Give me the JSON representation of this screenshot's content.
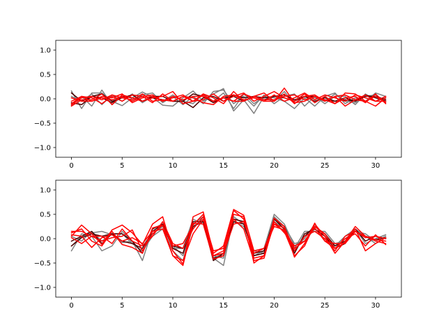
{
  "chart_data": [
    {
      "type": "line",
      "xlim": [
        -1.55,
        32.55
      ],
      "ylim": [
        -1.2,
        1.2
      ],
      "x_ticks": [
        0,
        5,
        10,
        15,
        20,
        25,
        30
      ],
      "x_tick_labels": [
        "0",
        "5",
        "10",
        "15",
        "20",
        "25",
        "30"
      ],
      "y_ticks": [
        -1.0,
        -0.5,
        0.0,
        0.5,
        1.0
      ],
      "y_tick_labels": [
        "−1.0",
        "−0.5",
        "0.0",
        "0.5",
        "1.0"
      ],
      "grid": false,
      "colors": {
        "gray": "#808080",
        "dark": "#4d0000",
        "red": "#ff0000"
      },
      "x": [
        0,
        1,
        2,
        3,
        4,
        5,
        6,
        7,
        8,
        9,
        10,
        11,
        12,
        13,
        14,
        15,
        16,
        17,
        18,
        19,
        20,
        21,
        22,
        23,
        24,
        25,
        26,
        27,
        28,
        29,
        30,
        31
      ],
      "series": [
        {
          "color": "gray",
          "values": [
            0.16,
            -0.2,
            0.12,
            0.12,
            -0.05,
            -0.14,
            0.02,
            0.14,
            0.03,
            -0.13,
            -0.15,
            0.02,
            0.16,
            -0.05,
            0.1,
            0.21,
            -0.25,
            -0.02,
            -0.3,
            0.05,
            0.02,
            -0.05,
            -0.2,
            0.02,
            -0.15,
            0.05,
            0.12,
            -0.1,
            0.02,
            -0.05,
            0.12,
            0.05
          ]
        },
        {
          "color": "gray",
          "values": [
            -0.14,
            0.05,
            -0.15,
            0.18,
            -0.12,
            0.05,
            -0.05,
            0.08,
            0.12,
            -0.08,
            0.05,
            -0.12,
            0.05,
            -0.1,
            0.15,
            0.18,
            -0.1,
            0.05,
            -0.15,
            0.08,
            -0.1,
            0.05,
            0.1,
            -0.15,
            0.05,
            -0.1,
            0.05,
            0.05,
            -0.12,
            0.1,
            -0.05,
            0.02
          ]
        },
        {
          "color": "gray",
          "values": [
            0.05,
            -0.05,
            0.1,
            -0.12,
            0.08,
            -0.05,
            0.1,
            -0.08,
            0.05,
            -0.05,
            0.08,
            -0.05,
            -0.1,
            0.1,
            -0.05,
            0.12,
            -0.2,
            0.1,
            -0.1,
            0.05,
            -0.05,
            0.15,
            -0.1,
            0.05,
            0.02,
            -0.05,
            0.1,
            -0.05,
            -0.08,
            0.05,
            0.08,
            -0.05
          ]
        },
        {
          "color": "dark",
          "values": [
            0.12,
            -0.05,
            0.05,
            0.1,
            -0.05,
            0.02,
            0.08,
            -0.05,
            0.05,
            0.05,
            -0.05,
            -0.05,
            0.1,
            0.05,
            -0.08,
            0.02,
            0.05,
            -0.05,
            0.05,
            0.02,
            0.05,
            0.02,
            -0.05,
            0.05,
            0.05,
            -0.02,
            -0.05,
            0.02,
            -0.05,
            0.05,
            0.05,
            -0.02
          ]
        },
        {
          "color": "dark",
          "values": [
            -0.08,
            -0.12,
            0.05,
            0.02,
            -0.08,
            0.05,
            0.02,
            -0.05,
            0.02,
            -0.02,
            -0.05,
            -0.05,
            -0.18,
            0.02,
            0.05,
            -0.05,
            0.08,
            0.02,
            0.05,
            -0.02,
            0.05,
            0.08,
            -0.02,
            0.05,
            -0.05,
            0.02,
            -0.05,
            -0.02,
            -0.05,
            0.08,
            0.02,
            -0.05
          ]
        },
        {
          "color": "red",
          "values": [
            -0.15,
            -0.02,
            -0.02,
            0.1,
            -0.12,
            0.08,
            0.02,
            -0.05,
            0.02,
            0.05,
            0.15,
            -0.1,
            -0.05,
            0.08,
            -0.05,
            0.02,
            -0.05,
            0.1,
            0.02,
            -0.05,
            -0.05,
            0.22,
            -0.08,
            -0.05,
            0.05,
            -0.02,
            -0.1,
            0.12,
            0.1,
            -0.05,
            -0.15,
            0.02
          ]
        },
        {
          "color": "red",
          "values": [
            -0.05,
            0.05,
            0.02,
            -0.1,
            0.05,
            -0.05,
            0.08,
            0.05,
            -0.08,
            0.1,
            -0.05,
            0.05,
            -0.05,
            0.1,
            0.02,
            -0.1,
            0.15,
            -0.05,
            0.05,
            0.12,
            -0.05,
            0.1,
            -0.1,
            0.05,
            0.08,
            -0.05,
            0.05,
            -0.15,
            -0.02,
            0.08,
            -0.05,
            -0.05
          ]
        },
        {
          "color": "red",
          "values": [
            -0.1,
            0.05,
            -0.05,
            0.05,
            0.02,
            0.1,
            -0.08,
            0.02,
            0.05,
            -0.05,
            0.02,
            0.08,
            -0.05,
            -0.02,
            0.1,
            -0.05,
            0.05,
            0.12,
            -0.05,
            0.05,
            0.15,
            0.02,
            -0.05,
            0.1,
            -0.08,
            0.05,
            -0.1,
            0.02,
            0.05,
            -0.08,
            0.1,
            -0.1
          ]
        },
        {
          "color": "red",
          "values": [
            -0.12,
            0.02,
            0.05,
            -0.02,
            0.08,
            0.02,
            -0.02,
            0.1,
            -0.05,
            -0.02,
            -0.05,
            0.05,
            0.02,
            -0.08,
            -0.12,
            0.05,
            0.08,
            -0.02,
            0.02,
            -0.05,
            0.08,
            -0.05,
            0.02,
            0.12,
            -0.02,
            0.08,
            0.02,
            -0.05,
            0.08,
            0.02,
            -0.05,
            0.05
          ]
        },
        {
          "color": "red",
          "values": [
            0.02,
            -0.05,
            -0.05,
            0.02,
            -0.02,
            0.05,
            -0.05,
            0.05,
            0.08,
            -0.05,
            0.05,
            -0.02,
            0.05,
            0.05,
            -0.05,
            0.02,
            -0.05,
            -0.05,
            0.05,
            -0.02,
            -0.02,
            0.05,
            0.08,
            -0.02,
            0.05,
            -0.05,
            0.05,
            0.08,
            -0.02,
            -0.05,
            0.05,
            -0.08
          ]
        }
      ]
    },
    {
      "type": "line",
      "xlim": [
        -1.55,
        32.55
      ],
      "ylim": [
        -1.2,
        1.2
      ],
      "x_ticks": [
        0,
        5,
        10,
        15,
        20,
        25,
        30
      ],
      "x_tick_labels": [
        "0",
        "5",
        "10",
        "15",
        "20",
        "25",
        "30"
      ],
      "y_ticks": [
        -1.0,
        -0.5,
        0.0,
        0.5,
        1.0
      ],
      "y_tick_labels": [
        "−1.0",
        "−0.5",
        "0.0",
        "0.5",
        "1.0"
      ],
      "grid": false,
      "colors": {
        "gray": "#808080",
        "dark": "#4d0000",
        "red": "#ff0000"
      },
      "x": [
        0,
        1,
        2,
        3,
        4,
        5,
        6,
        7,
        8,
        9,
        10,
        11,
        12,
        13,
        14,
        15,
        16,
        17,
        18,
        19,
        20,
        21,
        22,
        23,
        24,
        25,
        26,
        27,
        28,
        29,
        30,
        31
      ],
      "series": [
        {
          "color": "gray",
          "values": [
            -0.25,
            0.1,
            0.05,
            -0.25,
            -0.15,
            0.15,
            -0.05,
            -0.45,
            0.2,
            0.3,
            -0.2,
            -0.2,
            0.4,
            0.3,
            -0.4,
            -0.55,
            0.45,
            0.3,
            -0.3,
            -0.2,
            0.5,
            0.3,
            -0.15,
            0.0,
            0.3,
            -0.05,
            -0.15,
            0.05,
            0.2,
            -0.1,
            0.0,
            0.08
          ]
        },
        {
          "color": "gray",
          "values": [
            -0.15,
            0.05,
            0.12,
            0.15,
            0.08,
            -0.08,
            -0.05,
            -0.15,
            0.1,
            0.25,
            -0.15,
            -0.35,
            0.3,
            0.45,
            -0.4,
            -0.3,
            0.35,
            0.25,
            -0.25,
            -0.3,
            0.35,
            0.2,
            -0.2,
            0.15,
            0.15,
            0.15,
            -0.1,
            -0.05,
            0.2,
            0.05,
            -0.1,
            0.02
          ]
        },
        {
          "color": "gray",
          "values": [
            0.05,
            -0.05,
            0.15,
            -0.05,
            0.1,
            0.1,
            -0.1,
            -0.25,
            0.05,
            0.2,
            -0.25,
            -0.45,
            0.25,
            0.4,
            -0.35,
            -0.4,
            0.4,
            0.35,
            -0.35,
            -0.25,
            0.45,
            0.25,
            -0.1,
            -0.05,
            0.2,
            0.05,
            -0.2,
            0.0,
            0.15,
            0.1,
            -0.05,
            0.05
          ]
        },
        {
          "color": "dark",
          "values": [
            -0.05,
            0.05,
            0.15,
            -0.1,
            0.1,
            0.1,
            -0.05,
            -0.3,
            0.2,
            0.3,
            -0.2,
            -0.3,
            0.35,
            0.35,
            -0.4,
            -0.35,
            0.4,
            0.35,
            -0.3,
            -0.25,
            0.4,
            0.25,
            -0.25,
            0.05,
            0.25,
            0.1,
            -0.15,
            -0.05,
            0.15,
            0.05,
            -0.02,
            0.02
          ]
        },
        {
          "color": "dark",
          "values": [
            -0.15,
            0.02,
            0.1,
            0.05,
            0.1,
            -0.05,
            -0.1,
            -0.2,
            0.15,
            0.3,
            -0.15,
            -0.2,
            0.25,
            0.35,
            -0.45,
            -0.3,
            0.35,
            0.3,
            -0.35,
            -0.3,
            0.4,
            0.2,
            -0.3,
            0.1,
            0.2,
            0.05,
            -0.2,
            -0.1,
            0.2,
            -0.05,
            0.05,
            0.0
          ]
        },
        {
          "color": "red",
          "values": [
            0.05,
            0.28,
            0.1,
            -0.12,
            0.18,
            0.28,
            0.12,
            -0.12,
            0.3,
            0.45,
            -0.25,
            -0.52,
            0.45,
            0.55,
            -0.3,
            -0.15,
            0.6,
            0.48,
            -0.25,
            -0.2,
            0.3,
            0.15,
            -0.35,
            -0.15,
            0.3,
            0.05,
            -0.3,
            -0.05,
            0.25,
            0.05,
            -0.05,
            -0.1
          ]
        },
        {
          "color": "red",
          "values": [
            0.12,
            0.2,
            -0.05,
            -0.15,
            0.15,
            -0.12,
            -0.18,
            -0.3,
            0.22,
            0.28,
            -0.35,
            -0.55,
            0.32,
            0.3,
            -0.42,
            -0.35,
            0.5,
            0.45,
            -0.5,
            -0.35,
            0.3,
            0.22,
            -0.2,
            -0.05,
            0.25,
            0.1,
            -0.2,
            -0.08,
            0.2,
            -0.25,
            -0.1,
            0.02
          ]
        },
        {
          "color": "red",
          "values": [
            0.15,
            0.15,
            0.05,
            -0.05,
            0.02,
            0.05,
            0.18,
            -0.25,
            0.1,
            0.28,
            -0.15,
            -0.1,
            0.28,
            0.5,
            -0.35,
            -0.25,
            0.58,
            0.4,
            -0.4,
            -0.35,
            0.42,
            0.25,
            -0.38,
            -0.1,
            0.32,
            -0.05,
            -0.2,
            0.0,
            0.1,
            -0.15,
            0.08,
            -0.12
          ]
        },
        {
          "color": "red",
          "values": [
            0.02,
            -0.1,
            0.05,
            0.05,
            -0.1,
            0.2,
            -0.05,
            -0.15,
            0.05,
            0.35,
            -0.1,
            -0.2,
            0.2,
            0.45,
            -0.25,
            -0.2,
            0.4,
            0.2,
            -0.45,
            -0.4,
            0.35,
            0.12,
            -0.15,
            -0.05,
            0.22,
            -0.05,
            -0.1,
            -0.1,
            0.15,
            0.05,
            -0.02,
            -0.05
          ]
        },
        {
          "color": "red",
          "values": [
            0.08,
            0.05,
            -0.18,
            0.02,
            0.08,
            -0.05,
            0.02,
            -0.1,
            0.15,
            0.2,
            -0.35,
            -0.45,
            0.1,
            0.4,
            -0.35,
            -0.3,
            0.3,
            0.35,
            -0.3,
            -0.2,
            0.25,
            0.18,
            -0.25,
            0.05,
            0.15,
            0.0,
            -0.25,
            0.05,
            0.15,
            0.02,
            0.05,
            0.0
          ]
        }
      ]
    }
  ]
}
